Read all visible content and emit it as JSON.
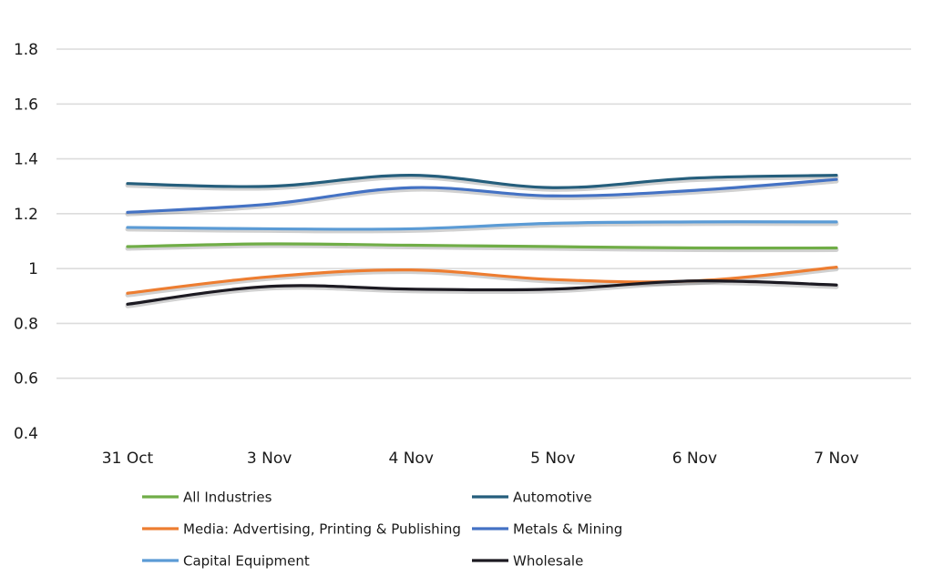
{
  "chart_data": {
    "type": "line",
    "title": "",
    "xlabel": "",
    "ylabel": "",
    "categories": [
      "31 Oct",
      "3 Nov",
      "4 Nov",
      "5 Nov",
      "6 Nov",
      "7 Nov"
    ],
    "ylim": [
      0.4,
      1.8
    ],
    "yticks": [
      "0.4",
      "0.6",
      "0.8",
      "1",
      "1.2",
      "1.4",
      "1.6",
      "1.8"
    ],
    "grid": true,
    "legend_position": "bottom",
    "series": [
      {
        "name": "All Industries",
        "color": "#70ad47",
        "values": [
          1.08,
          1.09,
          1.085,
          1.08,
          1.075,
          1.075
        ]
      },
      {
        "name": "Automotive",
        "color": "#255e7c",
        "values": [
          1.31,
          1.3,
          1.34,
          1.295,
          1.33,
          1.34
        ]
      },
      {
        "name": "Media: Advertising, Printing & Publishing",
        "color": "#ed7d31",
        "values": [
          0.91,
          0.97,
          0.995,
          0.96,
          0.955,
          1.005
        ]
      },
      {
        "name": "Metals & Mining",
        "color": "#4472c4",
        "values": [
          1.205,
          1.235,
          1.295,
          1.265,
          1.285,
          1.325
        ]
      },
      {
        "name": "Capital Equipment",
        "color": "#5b9bd5",
        "values": [
          1.15,
          1.145,
          1.145,
          1.165,
          1.17,
          1.17
        ]
      },
      {
        "name": "Wholesale",
        "color": "#1c1a22",
        "values": [
          0.87,
          0.935,
          0.925,
          0.925,
          0.955,
          0.94
        ]
      }
    ]
  }
}
